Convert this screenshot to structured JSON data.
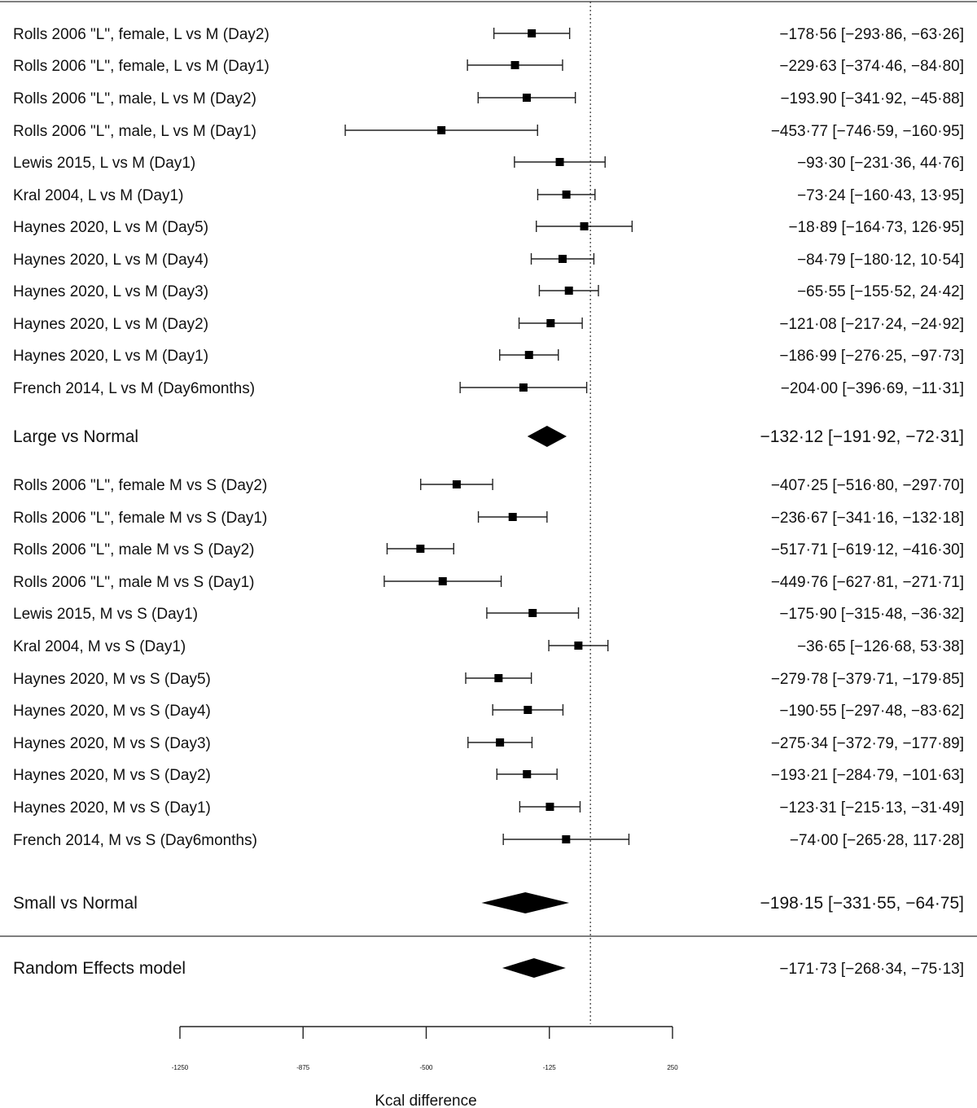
{
  "chart_data": {
    "type": "forest",
    "xlabel": "Kcal difference",
    "xlim": [
      -1250,
      250
    ],
    "xticks": [
      -1250,
      -875,
      -500,
      -125,
      250
    ],
    "xtick_labels": [
      "-1250",
      "-875",
      "-500",
      "-125",
      "250"
    ],
    "reference_line": 0,
    "rows": [
      {
        "label": "Rolls 2006 \"L\", female, L vs M (Day2)",
        "est": -178.56,
        "lo": -293.86,
        "hi": -63.26,
        "text": "−178·56 [−293·86,  −63·26]",
        "kind": "study"
      },
      {
        "label": "Rolls 2006 \"L\", female, L vs M (Day1)",
        "est": -229.63,
        "lo": -374.46,
        "hi": -84.8,
        "text": "−229·63 [−374·46,  −84·80]",
        "kind": "study"
      },
      {
        "label": "Rolls 2006 \"L\", male, L vs M (Day2)",
        "est": -193.9,
        "lo": -341.92,
        "hi": -45.88,
        "text": "−193.90 [−341·92,  −45·88]",
        "kind": "study"
      },
      {
        "label": "Rolls 2006 \"L\", male, L vs M (Day1)",
        "est": -453.77,
        "lo": -746.59,
        "hi": -160.95,
        "text": "−453·77 [−746·59, −160·95]",
        "kind": "study"
      },
      {
        "label": "Lewis 2015, L vs M (Day1)",
        "est": -93.3,
        "lo": -231.36,
        "hi": 44.76,
        "text": "−93·30 [−231·36,  44·76]",
        "kind": "study"
      },
      {
        "label": "Kral 2004, L vs M (Day1)",
        "est": -73.24,
        "lo": -160.43,
        "hi": 13.95,
        "text": "−73·24 [−160·43,  13·95]",
        "kind": "study"
      },
      {
        "label": "Haynes 2020, L vs M (Day5)",
        "est": -18.89,
        "lo": -164.73,
        "hi": 126.95,
        "text": "−18·89 [−164·73,  126·95]",
        "kind": "study"
      },
      {
        "label": "Haynes 2020, L vs M (Day4)",
        "est": -84.79,
        "lo": -180.12,
        "hi": 10.54,
        "text": "−84·79 [−180·12,  10·54]",
        "kind": "study"
      },
      {
        "label": "Haynes 2020, L vs M (Day3)",
        "est": -65.55,
        "lo": -155.52,
        "hi": 24.42,
        "text": "−65·55 [−155·52,  24·42]",
        "kind": "study"
      },
      {
        "label": "Haynes 2020, L vs M (Day2)",
        "est": -121.08,
        "lo": -217.24,
        "hi": -24.92,
        "text": "−121·08 [−217·24,  −24·92]",
        "kind": "study"
      },
      {
        "label": "Haynes 2020, L vs M (Day1)",
        "est": -186.99,
        "lo": -276.25,
        "hi": -97.73,
        "text": "−186·99 [−276·25,  −97·73]",
        "kind": "study"
      },
      {
        "label": "French 2014, L vs M (Day6months)",
        "est": -204.0,
        "lo": -396.69,
        "hi": -11.31,
        "text": "−204·00 [−396·69,  −11·31]",
        "kind": "study"
      },
      {
        "label": "Large vs Normal",
        "est": -132.12,
        "lo": -191.92,
        "hi": -72.31,
        "text": "−132·12 [−191·92, −72·31]",
        "kind": "subtotal"
      },
      {
        "label": "Rolls 2006 \"L\", female M vs S (Day2)",
        "est": -407.25,
        "lo": -516.8,
        "hi": -297.7,
        "text": "−407·25 [−516·80, −297·70]",
        "kind": "study"
      },
      {
        "label": "Rolls 2006 \"L\", female M vs S (Day1)",
        "est": -236.67,
        "lo": -341.16,
        "hi": -132.18,
        "text": "−236·67 [−341·16, −132·18]",
        "kind": "study"
      },
      {
        "label": "Rolls 2006 \"L\", male M vs S (Day2)",
        "est": -517.71,
        "lo": -619.12,
        "hi": -416.3,
        "text": "−517·71 [−619·12, −416·30]",
        "kind": "study"
      },
      {
        "label": "Rolls 2006 \"L\", male M vs S (Day1)",
        "est": -449.76,
        "lo": -627.81,
        "hi": -271.71,
        "text": "−449·76 [−627·81, −271·71]",
        "kind": "study"
      },
      {
        "label": "Lewis 2015, M vs S (Day1)",
        "est": -175.9,
        "lo": -315.48,
        "hi": -36.32,
        "text": "−175·90 [−315·48,  −36·32]",
        "kind": "study"
      },
      {
        "label": "Kral 2004, M vs S (Day1)",
        "est": -36.65,
        "lo": -126.68,
        "hi": 53.38,
        "text": "−36·65 [−126·68,  53·38]",
        "kind": "study"
      },
      {
        "label": "Haynes 2020, M vs S (Day5)",
        "est": -279.78,
        "lo": -379.71,
        "hi": -179.85,
        "text": "−279·78 [−379·71, −179·85]",
        "kind": "study"
      },
      {
        "label": "Haynes 2020, M vs S (Day4)",
        "est": -190.55,
        "lo": -297.48,
        "hi": -83.62,
        "text": "−190·55 [−297·48,  −83·62]",
        "kind": "study"
      },
      {
        "label": "Haynes 2020, M vs S (Day3)",
        "est": -275.34,
        "lo": -372.79,
        "hi": -177.89,
        "text": "−275·34 [−372·79, −177·89]",
        "kind": "study"
      },
      {
        "label": "Haynes 2020, M vs S (Day2)",
        "est": -193.21,
        "lo": -284.79,
        "hi": -101.63,
        "text": "−193·21 [−284·79, −101·63]",
        "kind": "study"
      },
      {
        "label": "Haynes 2020, M vs S (Day1)",
        "est": -123.31,
        "lo": -215.13,
        "hi": -31.49,
        "text": "−123·31 [−215·13,  −31·49]",
        "kind": "study"
      },
      {
        "label": "French 2014, M vs S (Day6months)",
        "est": -74.0,
        "lo": -265.28,
        "hi": 117.28,
        "text": "−74·00 [−265·28,  117·28]",
        "kind": "study"
      },
      {
        "label": "Small vs Normal",
        "est": -198.15,
        "lo": -331.55,
        "hi": -64.75,
        "text": "−198·15 [−331·55, −64·75]",
        "kind": "subtotal"
      },
      {
        "label": "Random Effects model",
        "est": -171.73,
        "lo": -268.34,
        "hi": -75.13,
        "text": "−171·73 [−268·34,  −75·13]",
        "kind": "overall"
      }
    ]
  }
}
